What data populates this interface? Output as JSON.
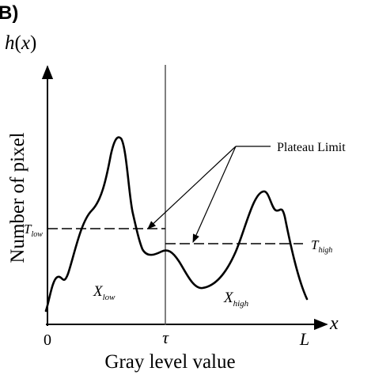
{
  "panel_label": "B)",
  "y_axis_symbol": {
    "base": "h",
    "arg": "(",
    "var": "x",
    "close": ")"
  },
  "y_axis_title": "Number of pixel",
  "x_axis_symbol": "x",
  "x_axis_title": "Gray level value",
  "tick_zero": "0",
  "tick_tau": "τ",
  "tick_L": "L",
  "callout_label": "Plateau Limit",
  "t_low": {
    "base": "T",
    "sub": "low"
  },
  "t_high": {
    "base": "T",
    "sub": "high"
  },
  "region_low": {
    "base": "X",
    "sub": "low"
  },
  "region_high": {
    "base": "X",
    "sub": "high"
  },
  "colors": {
    "ink": "#000000",
    "divider": "#555555",
    "background": "#ffffff"
  }
}
